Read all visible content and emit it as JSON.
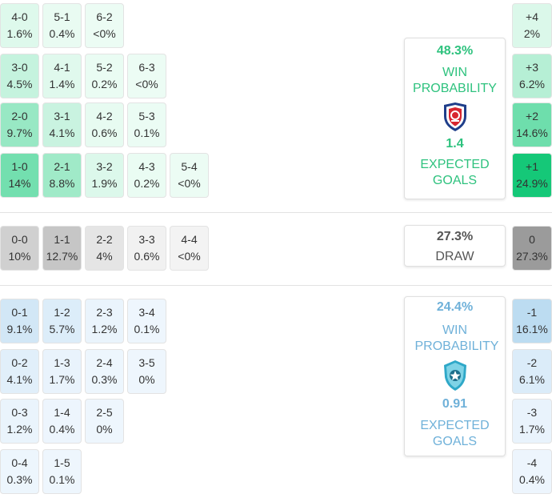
{
  "colors": {
    "home_accent": "#2ec27e",
    "away_accent": "#6fb1d9",
    "draw_text": "#555555"
  },
  "score_grid": {
    "home": [
      {
        "label": "4-0",
        "value": "1.6%"
      },
      {
        "label": "5-1",
        "value": "0.4%"
      },
      {
        "label": "6-2",
        "value": "<0%"
      },
      {
        "label": "3-0",
        "value": "4.5%"
      },
      {
        "label": "4-1",
        "value": "1.4%"
      },
      {
        "label": "5-2",
        "value": "0.2%"
      },
      {
        "label": "6-3",
        "value": "<0%"
      },
      {
        "label": "2-0",
        "value": "9.7%"
      },
      {
        "label": "3-1",
        "value": "4.1%"
      },
      {
        "label": "4-2",
        "value": "0.6%"
      },
      {
        "label": "5-3",
        "value": "0.1%"
      },
      {
        "label": "1-0",
        "value": "14%"
      },
      {
        "label": "2-1",
        "value": "8.8%"
      },
      {
        "label": "3-2",
        "value": "1.9%"
      },
      {
        "label": "4-3",
        "value": "0.2%"
      },
      {
        "label": "5-4",
        "value": "<0%"
      }
    ],
    "draw": [
      {
        "label": "0-0",
        "value": "10%"
      },
      {
        "label": "1-1",
        "value": "12.7%"
      },
      {
        "label": "2-2",
        "value": "4%"
      },
      {
        "label": "3-3",
        "value": "0.6%"
      },
      {
        "label": "4-4",
        "value": "<0%"
      }
    ],
    "away": [
      {
        "label": "0-1",
        "value": "9.1%"
      },
      {
        "label": "1-2",
        "value": "5.7%"
      },
      {
        "label": "2-3",
        "value": "1.2%"
      },
      {
        "label": "3-4",
        "value": "0.1%"
      },
      {
        "label": "0-2",
        "value": "4.1%"
      },
      {
        "label": "1-3",
        "value": "1.7%"
      },
      {
        "label": "2-4",
        "value": "0.3%"
      },
      {
        "label": "3-5",
        "value": "0%"
      },
      {
        "label": "0-3",
        "value": "1.2%"
      },
      {
        "label": "1-4",
        "value": "0.4%"
      },
      {
        "label": "2-5",
        "value": "0%"
      },
      {
        "label": "0-4",
        "value": "0.3%"
      },
      {
        "label": "1-5",
        "value": "0.1%"
      }
    ]
  },
  "margins": {
    "home": [
      {
        "label": "+4",
        "value": "2%"
      },
      {
        "label": "+3",
        "value": "6.2%"
      },
      {
        "label": "+2",
        "value": "14.6%"
      },
      {
        "label": "+1",
        "value": "24.9%"
      }
    ],
    "draw": [
      {
        "label": "0",
        "value": "27.3%"
      }
    ],
    "away": [
      {
        "label": "-1",
        "value": "16.1%"
      },
      {
        "label": "-2",
        "value": "6.1%"
      },
      {
        "label": "-3",
        "value": "1.7%"
      },
      {
        "label": "-4",
        "value": "0.4%"
      }
    ]
  },
  "home_panel": {
    "win_pct": "48.3%",
    "win_label": "WIN PROBABILITY",
    "xg": "1.4",
    "xg_label": "EXPECTED GOALS"
  },
  "draw_panel": {
    "pct": "27.3%",
    "label": "DRAW"
  },
  "away_panel": {
    "win_pct": "24.4%",
    "win_label": "WIN PROBABILITY",
    "xg": "0.91",
    "xg_label": "EXPECTED GOALS"
  },
  "chart_data": {
    "type": "heatmap",
    "title": "",
    "scores": {
      "home": {
        "4-0": 1.6,
        "5-1": 0.4,
        "6-2": 0,
        "3-0": 4.5,
        "4-1": 1.4,
        "5-2": 0.2,
        "6-3": 0,
        "2-0": 9.7,
        "3-1": 4.1,
        "4-2": 0.6,
        "5-3": 0.1,
        "1-0": 14,
        "2-1": 8.8,
        "3-2": 1.9,
        "4-3": 0.2,
        "5-4": 0
      },
      "draw": {
        "0-0": 10,
        "1-1": 12.7,
        "2-2": 4,
        "3-3": 0.6,
        "4-4": 0
      },
      "away": {
        "0-1": 9.1,
        "1-2": 5.7,
        "2-3": 1.2,
        "3-4": 0.1,
        "0-2": 4.1,
        "1-3": 1.7,
        "2-4": 0.3,
        "3-5": 0,
        "0-3": 1.2,
        "1-4": 0.4,
        "2-5": 0,
        "0-4": 0.3,
        "1-5": 0.1
      }
    },
    "goal_margin": {
      "+4": 2,
      "+3": 6.2,
      "+2": 14.6,
      "+1": 24.9,
      "0": 27.3,
      "-1": 16.1,
      "-2": 6.1,
      "-3": 1.7,
      "-4": 0.4
    },
    "home_win_probability": 48.3,
    "draw_probability": 27.3,
    "away_win_probability": 24.4,
    "home_expected_goals": 1.4,
    "away_expected_goals": 0.91
  }
}
